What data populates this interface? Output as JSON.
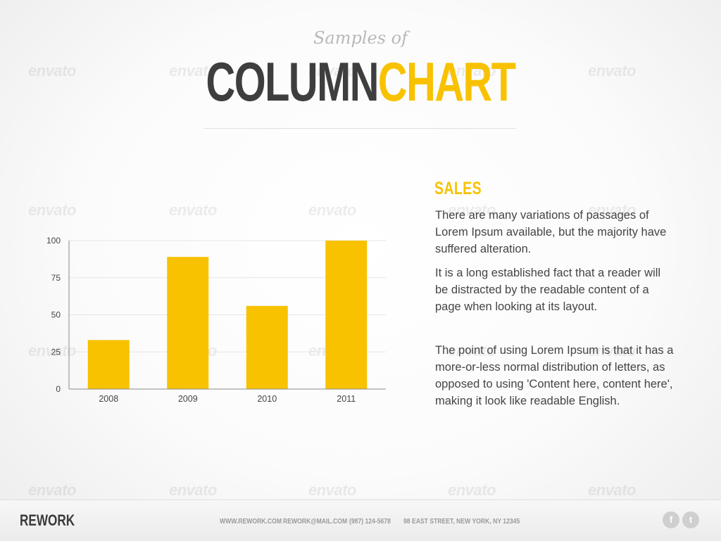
{
  "header": {
    "subtitle": "Samples of",
    "title_part1": "COLUMN",
    "title_part2": "CHART"
  },
  "colors": {
    "accent": "#f8c200",
    "dark": "#3e3e3e",
    "text": "#444444"
  },
  "watermark": {
    "label": "envato"
  },
  "chart_data": {
    "type": "bar",
    "categories": [
      "2008",
      "2009",
      "2010",
      "2011"
    ],
    "values": [
      33,
      89,
      56,
      100
    ],
    "ylim": [
      0,
      100
    ],
    "yticks": [
      0,
      25,
      50,
      75,
      100
    ],
    "grid": true,
    "color": "#f8c200"
  },
  "content": {
    "heading": "SALES",
    "paragraphs": [
      "There are many variations of passages of Lorem Ipsum available, but the majority have suffered alteration.",
      "It is a long established fact that a reader will be distracted by the readable content of a page when looking at its layout.",
      "The point of using Lorem Ipsum is that it has a more-or-less normal distribution of letters, as opposed to using 'Content here, content here', making it look like readable English."
    ]
  },
  "footer": {
    "brand": "REWORK",
    "website": "WWW.REWORK.COM",
    "email": "REWORK@MAIL.COM",
    "phone": "(987) 124-5678",
    "address": "98 EAST STREET, NEW YORK, NY 12345",
    "social": [
      {
        "icon": "facebook-icon",
        "glyph": "f"
      },
      {
        "icon": "twitter-icon",
        "glyph": "t"
      }
    ]
  }
}
